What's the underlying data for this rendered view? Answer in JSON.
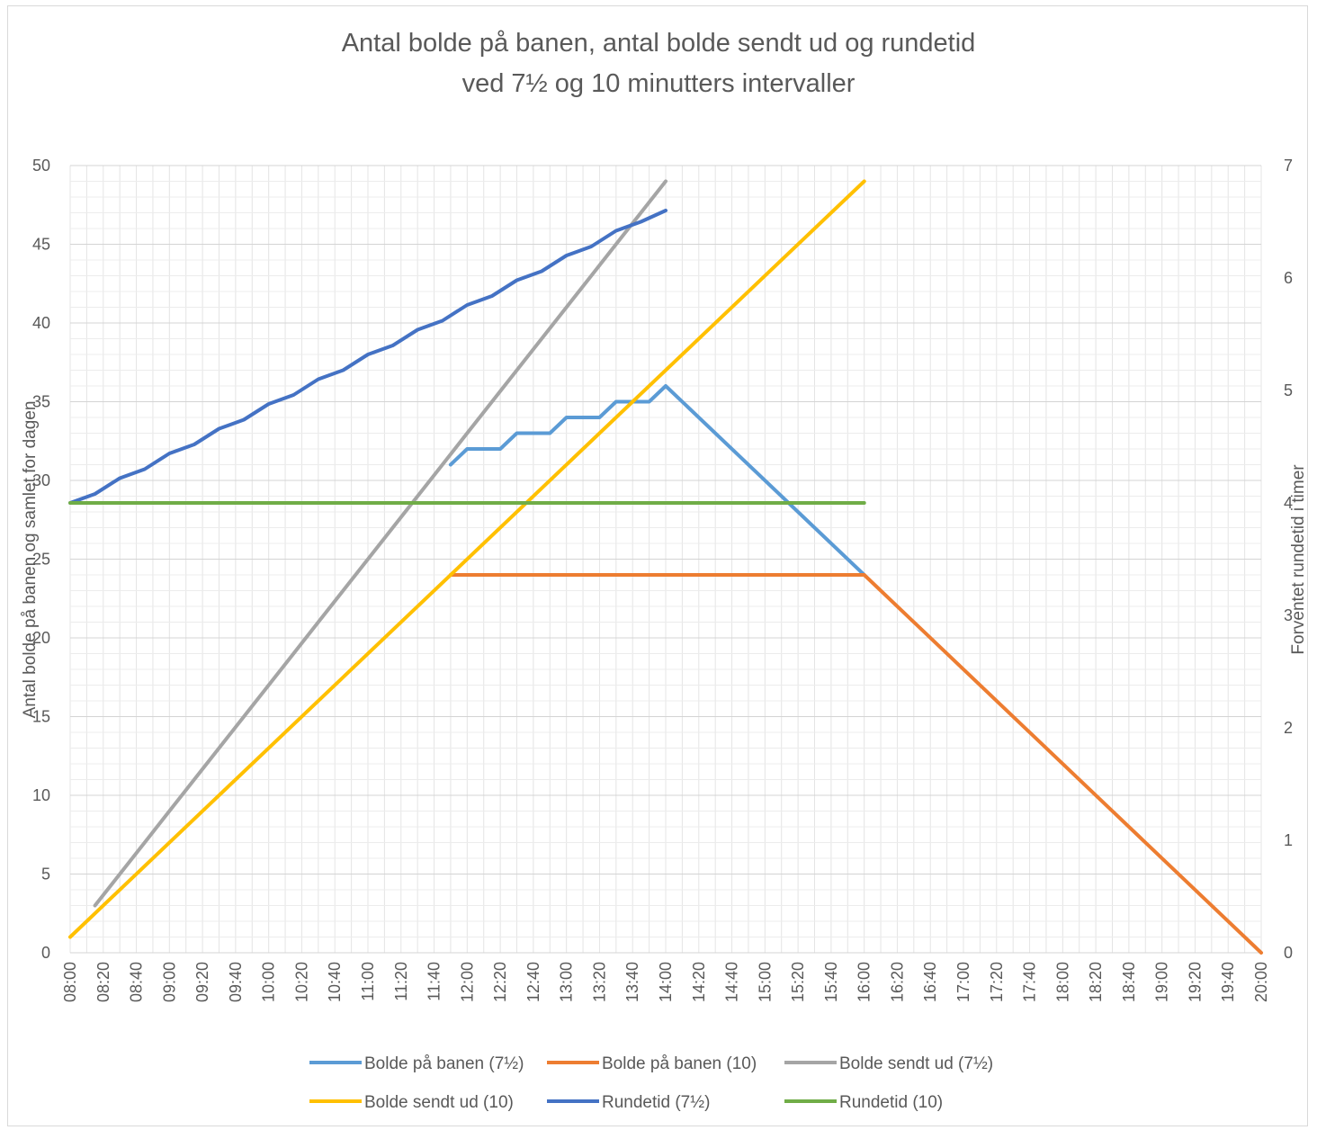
{
  "chart_data": {
    "type": "line",
    "title_line1": "Antal bolde på banen, antal bolde sendt ud og rundetid",
    "title_line2": "ved 7½ og 10 minutters intervaller",
    "ylabel_left": "Antal bolde på banen og samlet for dagen",
    "ylabel_right": "Forventet rundetid i timer",
    "ylim_left": [
      0,
      50
    ],
    "yticks_left": [
      0,
      5,
      10,
      15,
      20,
      25,
      30,
      35,
      40,
      45,
      50
    ],
    "ylim_right": [
      0,
      7
    ],
    "yticks_right": [
      0,
      1,
      2,
      3,
      4,
      5,
      6,
      7
    ],
    "x_range_minutes": [
      "08:00",
      "20:00"
    ],
    "x_tick_labels": [
      "08:00",
      "08:20",
      "08:40",
      "09:00",
      "09:20",
      "09:40",
      "10:00",
      "10:20",
      "10:40",
      "11:00",
      "11:20",
      "11:40",
      "12:00",
      "12:20",
      "12:40",
      "13:00",
      "13:20",
      "13:40",
      "14:00",
      "14:20",
      "14:40",
      "15:00",
      "15:20",
      "15:40",
      "16:00",
      "16:20",
      "16:40",
      "17:00",
      "17:20",
      "17:40",
      "18:00",
      "18:20",
      "18:40",
      "19:00",
      "19:20",
      "19:40",
      "20:00"
    ],
    "grid": true,
    "legend_position": "bottom",
    "series": [
      {
        "name": "Bolde på banen (7½)",
        "color": "#5b9bd5",
        "axis": "left",
        "points": [
          [
            "11:50",
            31
          ],
          [
            "12:00",
            32
          ],
          [
            "12:20",
            32
          ],
          [
            "12:30",
            33
          ],
          [
            "12:50",
            33
          ],
          [
            "13:00",
            34
          ],
          [
            "13:20",
            34
          ],
          [
            "13:30",
            35
          ],
          [
            "13:50",
            35
          ],
          [
            "14:00",
            36
          ],
          [
            "15:20",
            28
          ],
          [
            "16:00",
            24
          ]
        ]
      },
      {
        "name": "Bolde på banen (10)",
        "color": "#ed7d31",
        "axis": "left",
        "points": [
          [
            "11:50",
            24
          ],
          [
            "16:00",
            24
          ],
          [
            "20:00",
            0
          ]
        ]
      },
      {
        "name": "Bolde sendt ud (7½)",
        "color": "#a5a5a5",
        "axis": "left",
        "points": [
          [
            "08:15",
            3
          ],
          [
            "08:30",
            5
          ],
          [
            "08:45",
            7
          ],
          [
            "09:00",
            9
          ],
          [
            "09:15",
            11
          ],
          [
            "09:30",
            13
          ],
          [
            "09:45",
            15
          ],
          [
            "10:00",
            17
          ],
          [
            "10:15",
            19
          ],
          [
            "10:30",
            21
          ],
          [
            "10:45",
            23
          ],
          [
            "11:00",
            25
          ],
          [
            "11:15",
            27
          ],
          [
            "11:30",
            29
          ],
          [
            "11:45",
            31
          ],
          [
            "12:00",
            33
          ],
          [
            "12:15",
            35
          ],
          [
            "12:30",
            37
          ],
          [
            "12:45",
            39
          ],
          [
            "13:00",
            41
          ],
          [
            "13:15",
            43
          ],
          [
            "13:30",
            45
          ],
          [
            "13:45",
            47
          ],
          [
            "14:00",
            49
          ]
        ]
      },
      {
        "name": "Bolde sendt ud (10)",
        "color": "#ffc000",
        "axis": "left",
        "points": [
          [
            "08:00",
            1
          ],
          [
            "16:00",
            49
          ]
        ]
      },
      {
        "name": "Rundetid (7½)",
        "color": "#4472c4",
        "axis": "right",
        "points": [
          [
            "08:00",
            4.0
          ],
          [
            "08:15",
            4.08
          ],
          [
            "08:30",
            4.22
          ],
          [
            "08:45",
            4.3
          ],
          [
            "09:00",
            4.44
          ],
          [
            "09:15",
            4.52
          ],
          [
            "09:30",
            4.66
          ],
          [
            "09:45",
            4.74
          ],
          [
            "10:00",
            4.88
          ],
          [
            "10:15",
            4.96
          ],
          [
            "10:30",
            5.1
          ],
          [
            "10:45",
            5.18
          ],
          [
            "11:00",
            5.32
          ],
          [
            "11:15",
            5.4
          ],
          [
            "11:30",
            5.54
          ],
          [
            "11:45",
            5.62
          ],
          [
            "12:00",
            5.76
          ],
          [
            "12:15",
            5.84
          ],
          [
            "12:30",
            5.98
          ],
          [
            "12:45",
            6.06
          ],
          [
            "13:00",
            6.2
          ],
          [
            "13:15",
            6.28
          ],
          [
            "13:30",
            6.42
          ],
          [
            "13:45",
            6.5
          ],
          [
            "14:00",
            6.6
          ]
        ]
      },
      {
        "name": "Rundetid (10)",
        "color": "#70ad47",
        "axis": "right",
        "points": [
          [
            "08:00",
            4.0
          ],
          [
            "16:00",
            4.0
          ]
        ]
      }
    ]
  }
}
